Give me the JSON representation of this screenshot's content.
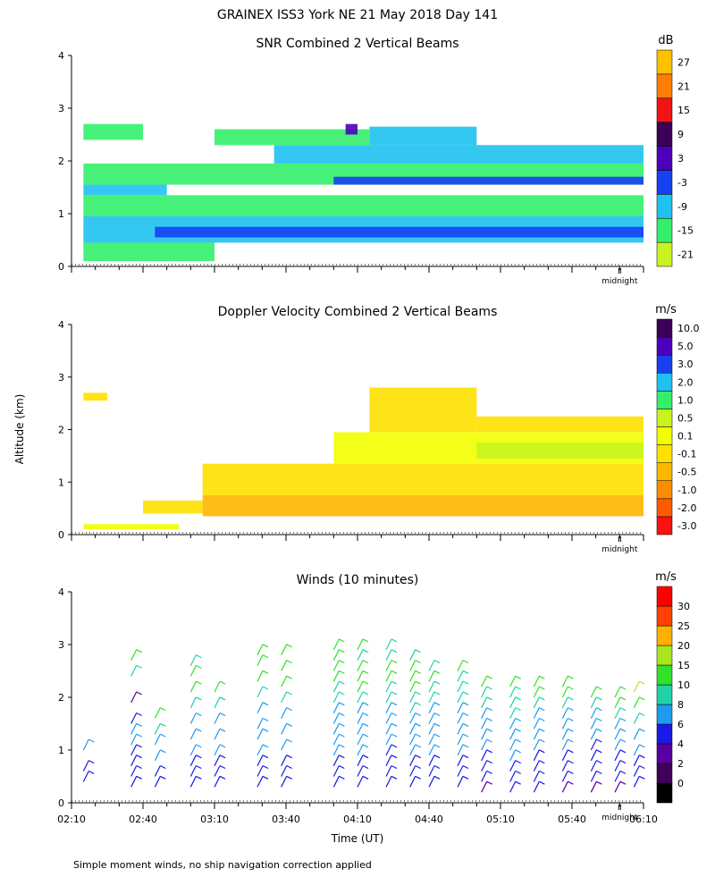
{
  "figure": {
    "title": "GRAINEX ISS3 York NE  21 May 2018 Day 141",
    "shared_ylabel": "Altitude (km)",
    "xlabel": "Time (UT)",
    "midnight_label": "midnight",
    "footnote": "Simple moment winds, no ship navigation correction applied"
  },
  "chart_data": [
    {
      "id": "snr",
      "type": "heatmap",
      "title": "SNR Combined 2 Vertical Beams",
      "ylim": [
        0,
        4
      ],
      "yticks": [
        "0",
        "1",
        "2",
        "3",
        "4"
      ],
      "xlim": [
        130,
        370
      ],
      "colorbar": {
        "unit": "dB",
        "labels": [
          "-21",
          "-15",
          "-9",
          "-3",
          "3",
          "9",
          "15",
          "21",
          "27"
        ],
        "colors": [
          "#c8f31e",
          "#33ef6a",
          "#1ec1ef",
          "#1640f2",
          "#4d00bc",
          "#3d0058",
          "#f21414",
          "#ff7d00",
          "#ffc000"
        ]
      },
      "patches": [
        {
          "t": [
            135,
            190
          ],
          "alt": [
            0.1,
            0.45
          ],
          "v": -18
        },
        {
          "t": [
            135,
            370
          ],
          "alt": [
            0.45,
            0.95
          ],
          "v": -14
        },
        {
          "t": [
            165,
            370
          ],
          "alt": [
            0.55,
            0.75
          ],
          "v": -9
        },
        {
          "t": [
            135,
            370
          ],
          "alt": [
            0.95,
            1.35
          ],
          "v": -16
        },
        {
          "t": [
            135,
            170
          ],
          "alt": [
            1.35,
            1.55
          ],
          "v": -14
        },
        {
          "t": [
            135,
            370
          ],
          "alt": [
            1.55,
            1.95
          ],
          "v": -18
        },
        {
          "t": [
            240,
            370
          ],
          "alt": [
            1.55,
            1.7
          ],
          "v": -8
        },
        {
          "t": [
            215,
            370
          ],
          "alt": [
            1.95,
            2.3
          ],
          "v": -15
        },
        {
          "t": [
            255,
            300
          ],
          "alt": [
            2.3,
            2.65
          ],
          "v": -14
        },
        {
          "t": [
            190,
            255
          ],
          "alt": [
            2.3,
            2.6
          ],
          "v": -19
        },
        {
          "t": [
            135,
            160
          ],
          "alt": [
            2.4,
            2.7
          ],
          "v": -18
        },
        {
          "t": [
            245,
            250
          ],
          "alt": [
            2.5,
            2.7
          ],
          "v": -3
        }
      ]
    },
    {
      "id": "doppler",
      "type": "heatmap",
      "title": "Doppler Velocity Combined 2 Vertical Beams",
      "ylim": [
        0,
        4
      ],
      "yticks": [
        "0",
        "1",
        "2",
        "3",
        "4"
      ],
      "xlim": [
        130,
        370
      ],
      "colorbar": {
        "unit": "m/s",
        "labels": [
          "-3.0",
          "-2.0",
          "-1.0",
          "-0.5",
          "-0.1",
          "0.1",
          "0.5",
          "1.0",
          "2.0",
          "3.0",
          "5.0",
          "10.0"
        ],
        "colors": [
          "#ff1010",
          "#ff5a00",
          "#ff8c00",
          "#ffb600",
          "#ffe000",
          "#f2ff00",
          "#c8f31e",
          "#33ef6a",
          "#1ec1ef",
          "#1640f2",
          "#4d00bc",
          "#3d0058"
        ]
      },
      "patches": [
        {
          "t": [
            135,
            145
          ],
          "alt": [
            2.55,
            2.7
          ],
          "v": -0.3
        },
        {
          "t": [
            160,
            185
          ],
          "alt": [
            0.4,
            0.65
          ],
          "v": -0.3
        },
        {
          "t": [
            185,
            370
          ],
          "alt": [
            0.35,
            0.75
          ],
          "v": -0.7
        },
        {
          "t": [
            185,
            370
          ],
          "alt": [
            0.75,
            1.35
          ],
          "v": -0.3
        },
        {
          "t": [
            240,
            370
          ],
          "alt": [
            1.35,
            1.95
          ],
          "v": -0.05
        },
        {
          "t": [
            300,
            370
          ],
          "alt": [
            1.45,
            1.75
          ],
          "v": 0.3
        },
        {
          "t": [
            255,
            300
          ],
          "alt": [
            1.95,
            2.8
          ],
          "v": -0.3
        },
        {
          "t": [
            300,
            370
          ],
          "alt": [
            1.95,
            2.25
          ],
          "v": -0.3
        },
        {
          "t": [
            135,
            175
          ],
          "alt": [
            0.1,
            0.2
          ],
          "v": -0.05
        }
      ]
    },
    {
      "id": "winds",
      "type": "scatter",
      "title": "Winds (10 minutes)",
      "ylim": [
        0,
        4
      ],
      "yticks": [
        "0",
        "1",
        "2",
        "3",
        "4"
      ],
      "xlim": [
        130,
        370
      ],
      "xticks": [
        "02:10",
        "02:40",
        "03:10",
        "03:40",
        "04:10",
        "04:40",
        "05:10",
        "05:40",
        "06:10"
      ],
      "colorbar": {
        "unit": "m/s",
        "labels": [
          "0",
          "2",
          "4",
          "6",
          "8",
          "10",
          "15",
          "20",
          "25",
          "30"
        ],
        "colors": [
          "#000000",
          "#40005a",
          "#5a00a0",
          "#1a1ae6",
          "#1e9bef",
          "#20d2a6",
          "#33e02a",
          "#a8e61e",
          "#ffb000",
          "#ff4000",
          "#ff0000"
        ]
      },
      "profiles": [
        {
          "t": 135,
          "alt": [
            0.4,
            0.6,
            1.0
          ],
          "speed": [
            4,
            5,
            6
          ]
        },
        {
          "t": 155,
          "alt": [
            0.3,
            0.5,
            0.7,
            0.9,
            1.1,
            1.3,
            1.5,
            1.9,
            2.4,
            2.7
          ],
          "speed": [
            4,
            5,
            5,
            5,
            6,
            6,
            5,
            3,
            9,
            14
          ]
        },
        {
          "t": 165,
          "alt": [
            0.3,
            0.5,
            0.8,
            1.1,
            1.3,
            1.6
          ],
          "speed": [
            4,
            5,
            6,
            7,
            9,
            13
          ]
        },
        {
          "t": 180,
          "alt": [
            0.3,
            0.5,
            0.7,
            0.9,
            1.2,
            1.5,
            1.8,
            2.1,
            2.4,
            2.6
          ],
          "speed": [
            4,
            5,
            5,
            6,
            6,
            7,
            8,
            10,
            12,
            8
          ]
        },
        {
          "t": 190,
          "alt": [
            0.3,
            0.5,
            0.7,
            0.9,
            1.2,
            1.5,
            1.8,
            2.1
          ],
          "speed": [
            4,
            5,
            5,
            6,
            6,
            7,
            9,
            11
          ]
        },
        {
          "t": 208,
          "alt": [
            0.3,
            0.5,
            0.7,
            0.9,
            1.2,
            1.4,
            1.7,
            2.0,
            2.3,
            2.6,
            2.8
          ],
          "speed": [
            4,
            5,
            5,
            6,
            6,
            7,
            7,
            9,
            11,
            12,
            10
          ]
        },
        {
          "t": 218,
          "alt": [
            0.3,
            0.5,
            0.7,
            1.0,
            1.3,
            1.6,
            1.9,
            2.2,
            2.5,
            2.8
          ],
          "speed": [
            4,
            5,
            5,
            6,
            6,
            7,
            9,
            13,
            11,
            10
          ]
        },
        {
          "t": 240,
          "alt": [
            0.3,
            0.5,
            0.7,
            0.9,
            1.1,
            1.3,
            1.5,
            1.7,
            1.9,
            2.1,
            2.3,
            2.5,
            2.7,
            2.9
          ],
          "speed": [
            4,
            5,
            5,
            6,
            6,
            6,
            7,
            7,
            8,
            9,
            10,
            12,
            10,
            12
          ]
        },
        {
          "t": 250,
          "alt": [
            0.3,
            0.5,
            0.7,
            0.9,
            1.1,
            1.3,
            1.5,
            1.7,
            1.9,
            2.1,
            2.3,
            2.5,
            2.7,
            2.9
          ],
          "speed": [
            4,
            5,
            5,
            6,
            6,
            6,
            7,
            7,
            9,
            10,
            11,
            12,
            9,
            10
          ]
        },
        {
          "t": 262,
          "alt": [
            0.3,
            0.5,
            0.7,
            0.9,
            1.1,
            1.3,
            1.5,
            1.7,
            1.9,
            2.1,
            2.3,
            2.5,
            2.7,
            2.9
          ],
          "speed": [
            4,
            4,
            5,
            5,
            6,
            6,
            7,
            7,
            8,
            9,
            10,
            11,
            9,
            9
          ]
        },
        {
          "t": 272,
          "alt": [
            0.3,
            0.5,
            0.7,
            0.9,
            1.1,
            1.3,
            1.5,
            1.7,
            1.9,
            2.1,
            2.3,
            2.5,
            2.7
          ],
          "speed": [
            4,
            5,
            5,
            6,
            6,
            7,
            7,
            8,
            9,
            12,
            11,
            10,
            9
          ]
        },
        {
          "t": 280,
          "alt": [
            0.3,
            0.5,
            0.7,
            0.9,
            1.1,
            1.3,
            1.5,
            1.7,
            1.9,
            2.1,
            2.3,
            2.5
          ],
          "speed": [
            4,
            5,
            5,
            6,
            6,
            6,
            7,
            7,
            8,
            9,
            10,
            9
          ]
        },
        {
          "t": 292,
          "alt": [
            0.3,
            0.5,
            0.7,
            0.9,
            1.1,
            1.3,
            1.5,
            1.7,
            1.9,
            2.1,
            2.3,
            2.5
          ],
          "speed": [
            4,
            5,
            5,
            6,
            6,
            6,
            7,
            7,
            8,
            9,
            9,
            10
          ]
        },
        {
          "t": 302,
          "alt": [
            0.2,
            0.4,
            0.6,
            0.8,
            1.0,
            1.2,
            1.4,
            1.6,
            1.8,
            2.0,
            2.2
          ],
          "speed": [
            2,
            4,
            5,
            5,
            6,
            6,
            7,
            7,
            8,
            9,
            10
          ]
        },
        {
          "t": 314,
          "alt": [
            0.2,
            0.4,
            0.6,
            0.8,
            1.0,
            1.2,
            1.4,
            1.6,
            1.8,
            2.0,
            2.2
          ],
          "speed": [
            4,
            5,
            5,
            6,
            6,
            6,
            7,
            8,
            8,
            9,
            10
          ]
        },
        {
          "t": 324,
          "alt": [
            0.2,
            0.4,
            0.6,
            0.8,
            1.0,
            1.2,
            1.4,
            1.6,
            1.8,
            2.0,
            2.2
          ],
          "speed": [
            4,
            5,
            5,
            5,
            6,
            6,
            7,
            7,
            8,
            10,
            11
          ]
        },
        {
          "t": 336,
          "alt": [
            0.2,
            0.4,
            0.6,
            0.8,
            1.0,
            1.2,
            1.4,
            1.6,
            1.8,
            2.0,
            2.2
          ],
          "speed": [
            3,
            4,
            5,
            5,
            6,
            6,
            7,
            7,
            9,
            10,
            12
          ]
        },
        {
          "t": 348,
          "alt": [
            0.2,
            0.4,
            0.6,
            0.8,
            1.0,
            1.2,
            1.4,
            1.6,
            1.8,
            2.0
          ],
          "speed": [
            3,
            4,
            5,
            5,
            5,
            6,
            6,
            7,
            8,
            13
          ]
        },
        {
          "t": 358,
          "alt": [
            0.2,
            0.4,
            0.6,
            0.8,
            1.0,
            1.2,
            1.4,
            1.6,
            1.8,
            2.0
          ],
          "speed": [
            3,
            4,
            5,
            5,
            6,
            6,
            7,
            8,
            10,
            14
          ]
        },
        {
          "t": 366,
          "alt": [
            0.3,
            0.5,
            0.7,
            0.9,
            1.2,
            1.5,
            1.8,
            2.1
          ],
          "speed": [
            4,
            5,
            5,
            6,
            7,
            9,
            12,
            18
          ]
        }
      ]
    }
  ]
}
